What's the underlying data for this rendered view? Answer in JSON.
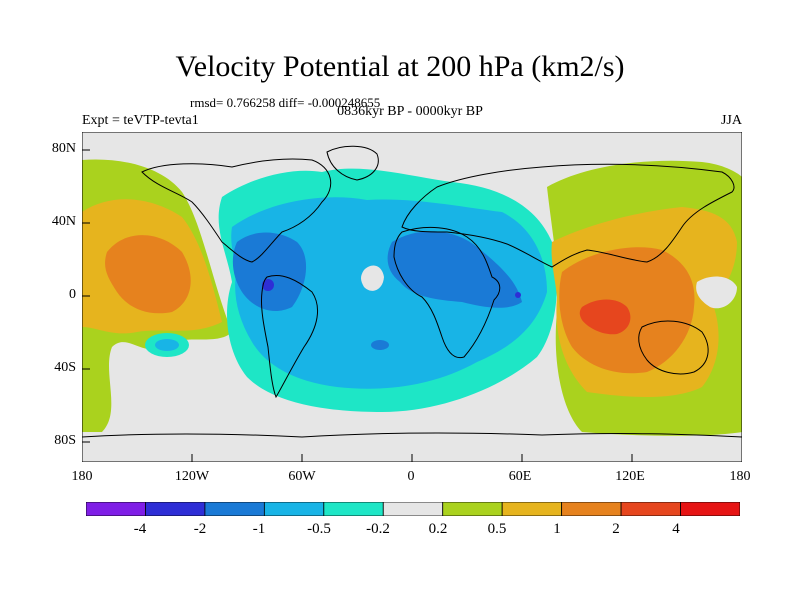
{
  "header": {
    "title": "Velocity Potential at 200 hPa (km2/s)",
    "stats": "rmsd= 0.766258  diff= -0.000248655",
    "subtitle": "0836kyr BP - 0000kyr BP",
    "experiment": "Expt = teVTP-tevta1",
    "season": "JJA"
  },
  "axes": {
    "y_ticks": [
      "80N",
      "40N",
      "0",
      "40S",
      "80S"
    ],
    "x_ticks": [
      "180",
      "120W",
      "60W",
      "0",
      "60E",
      "120E",
      "180"
    ]
  },
  "colorbar": {
    "labels": [
      "-4",
      "-2",
      "-1",
      "-0.5",
      "-0.2",
      "0.2",
      "0.5",
      "1",
      "2",
      "4"
    ],
    "colors": [
      "#7f1ee6",
      "#2e2ed6",
      "#1a7ad6",
      "#18b4e6",
      "#1ee6c6",
      "#e6e6e6",
      "#aad21e",
      "#e6b41e",
      "#e6821e",
      "#e6461e",
      "#e61414"
    ]
  },
  "palette": {
    "land_coast": "#000000",
    "background": "#ffffff"
  }
}
